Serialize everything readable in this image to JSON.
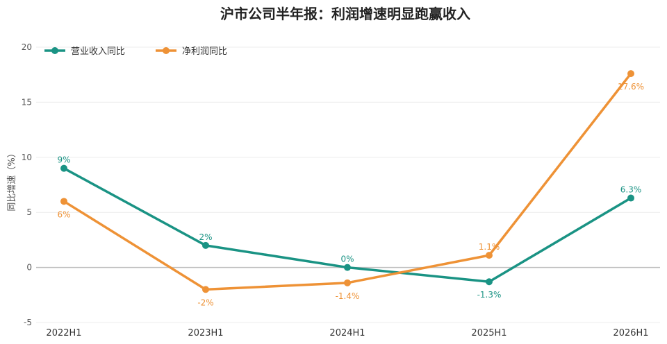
{
  "chart_data": {
    "type": "line",
    "title": "沪市公司半年报：利润增速明显跑赢收入",
    "xlabel": "",
    "ylabel": "同比增速（%）",
    "categories": [
      "2022H1",
      "2023H1",
      "2024H1",
      "2025H1",
      "2026H1"
    ],
    "ylim": [
      -5,
      20
    ],
    "yticks": [
      -5,
      0,
      5,
      10,
      15,
      20
    ],
    "grid": true,
    "legend": "top-left",
    "series": [
      {
        "name": "营业收入同比",
        "color": "#1a9384",
        "values": [
          9,
          2,
          0,
          -1.3,
          6.3
        ],
        "labels": [
          "9%",
          "2%",
          "0%",
          "-1.3%",
          "6.3%"
        ],
        "label_position": [
          "above",
          "above",
          "above",
          "below",
          "above"
        ]
      },
      {
        "name": "净利润同比",
        "color": "#ee9236",
        "values": [
          6,
          -2,
          -1.4,
          1.1,
          17.6
        ],
        "labels": [
          "6%",
          "-2%",
          "-1.4%",
          "1.1%",
          "17.6%"
        ],
        "label_position": [
          "below",
          "below",
          "below",
          "above",
          "below"
        ]
      }
    ]
  }
}
